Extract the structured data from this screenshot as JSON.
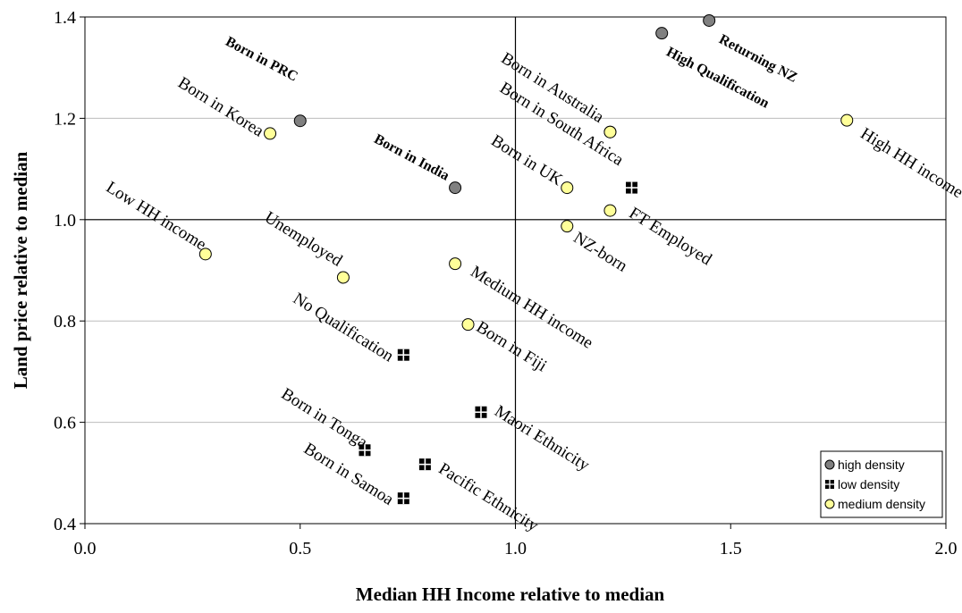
{
  "chart_data": {
    "type": "scatter",
    "xlabel": "Median HH Income relative to median",
    "ylabel": "Land price relative to median",
    "xlim": [
      0.0,
      2.0
    ],
    "ylim": [
      0.4,
      1.4
    ],
    "xticks": [
      "0.0",
      "0.5",
      "1.0",
      "1.5",
      "2.0"
    ],
    "yticks": [
      "0.4",
      "0.6",
      "0.8",
      "1.0",
      "1.2",
      "1.4"
    ],
    "grid": "horizontal",
    "reference_lines": {
      "x": 1.0,
      "y": 1.0
    },
    "legend_position": "bottom-right",
    "series": [
      {
        "name": "high density",
        "marker": "circle",
        "color": "#808080",
        "points": [
          {
            "label": "Born in PRC",
            "x": 0.5,
            "y": 1.195
          },
          {
            "label": "Born in India",
            "x": 0.86,
            "y": 1.063
          },
          {
            "label": "High Qualification",
            "x": 1.34,
            "y": 1.368
          },
          {
            "label": "Returning NZ",
            "x": 1.45,
            "y": 1.393
          }
        ]
      },
      {
        "name": "low density",
        "marker": "square",
        "color": "#000000",
        "points": [
          {
            "label": "No Qualification",
            "x": 0.74,
            "y": 0.733
          },
          {
            "label": "Born in Tonga",
            "x": 0.65,
            "y": 0.545
          },
          {
            "label": "Born in Samoa",
            "x": 0.74,
            "y": 0.45
          },
          {
            "label": "Pacific Ethnicity",
            "x": 0.79,
            "y": 0.517
          },
          {
            "label": "Maori Ethnicity",
            "x": 0.92,
            "y": 0.62
          },
          {
            "label": "",
            "x": 1.27,
            "y": 1.063
          }
        ]
      },
      {
        "name": "medium density",
        "marker": "circle",
        "color": "#FFFF99",
        "points": [
          {
            "label": "Low HH income",
            "x": 0.28,
            "y": 0.932
          },
          {
            "label": "Born in Korea",
            "x": 0.43,
            "y": 1.17
          },
          {
            "label": "Unemployed",
            "x": 0.6,
            "y": 0.886
          },
          {
            "label": "Medium HH income",
            "x": 0.86,
            "y": 0.913
          },
          {
            "label": "Born in Fiji",
            "x": 0.89,
            "y": 0.793
          },
          {
            "label": "Born in UK",
            "x": 1.12,
            "y": 1.063
          },
          {
            "label": "NZ-born",
            "x": 1.12,
            "y": 0.987
          },
          {
            "label": "Born in South Africa",
            "x": 1.22,
            "y": 1.173
          },
          {
            "label": "Born in Australia",
            "x": 1.22,
            "y": 1.173
          },
          {
            "label": "FT Employed",
            "x": 1.22,
            "y": 1.018
          },
          {
            "label": "High HH income",
            "x": 1.77,
            "y": 1.196
          }
        ]
      }
    ]
  }
}
